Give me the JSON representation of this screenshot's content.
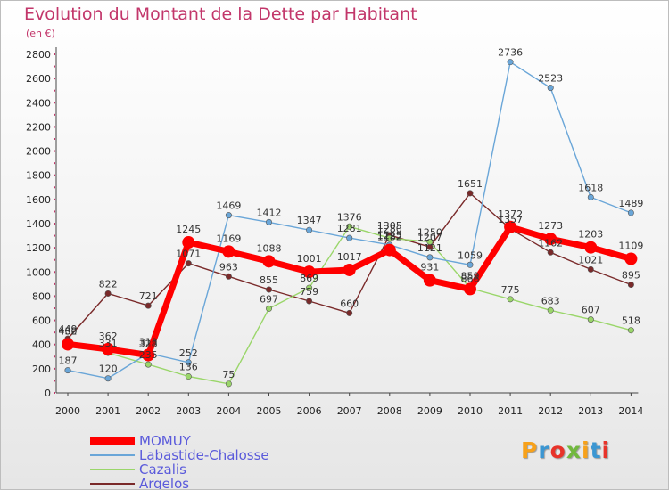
{
  "title": "Evolution du Montant de la Dette par Habitant",
  "subtitle": "(en €)",
  "logo": {
    "letters": [
      "P",
      "r",
      "o",
      "x",
      "i",
      "t",
      "i"
    ],
    "colors": [
      "#f7a11a",
      "#3b96d2",
      "#e8332a",
      "#71b83e",
      "#f7a11a",
      "#3b96d2",
      "#e8332a"
    ]
  },
  "chart_data": {
    "type": "line",
    "title": "Evolution du Montant de la Dette par Habitant",
    "subtitle": "(en €)",
    "x": [
      "2000",
      "2001",
      "2002",
      "2003",
      "2004",
      "2005",
      "2006",
      "2007",
      "2008",
      "2009",
      "2010",
      "2011",
      "2012",
      "2013",
      "2014"
    ],
    "ylim": [
      0,
      2800
    ],
    "yticks": [
      0,
      200,
      400,
      600,
      800,
      1000,
      1200,
      1400,
      1600,
      1800,
      2000,
      2200,
      2400,
      2600,
      2800
    ],
    "grid": false,
    "legend_position": "bottom-left",
    "series": [
      {
        "name": "MOMUY",
        "color": "#ff0000",
        "values": [
          402,
          362,
          313,
          1245,
          1169,
          1088,
          1001,
          1017,
          1182,
          931,
          859,
          1372,
          1273,
          1203,
          1109
        ]
      },
      {
        "name": "Labastide-Chalosse",
        "color": "#6aa6d8",
        "values": [
          187,
          120,
          328,
          252,
          1469,
          1412,
          1347,
          1281,
          1225,
          1121,
          1059,
          2736,
          2523,
          1618,
          1489
        ]
      },
      {
        "name": "Cazalis",
        "color": "#9ad66a",
        "values": [
          430,
          331,
          235,
          136,
          75,
          697,
          869,
          1376,
          1280,
          1250,
          866,
          775,
          683,
          607,
          518
        ]
      },
      {
        "name": "Argelos",
        "color": "#7a2a2a",
        "values": [
          449,
          822,
          721,
          1071,
          963,
          855,
          759,
          660,
          1305,
          1207,
          1651,
          1357,
          1162,
          1021,
          895
        ]
      }
    ]
  }
}
